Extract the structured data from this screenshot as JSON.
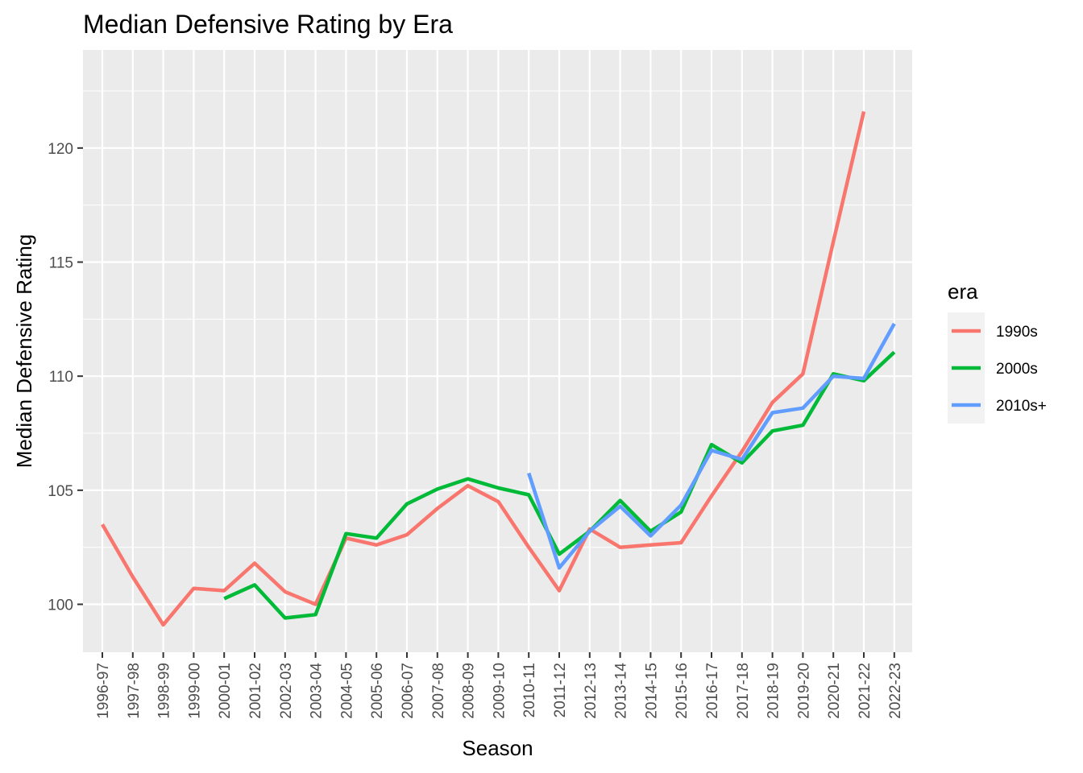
{
  "chart_data": {
    "type": "line",
    "title": "Median Defensive Rating by Era",
    "xlabel": "Season",
    "ylabel": "Median Defensive Rating",
    "categories": [
      "1996-97",
      "1997-98",
      "1998-99",
      "1999-00",
      "2000-01",
      "2001-02",
      "2002-03",
      "2003-04",
      "2004-05",
      "2005-06",
      "2006-07",
      "2007-08",
      "2008-09",
      "2009-10",
      "2010-11",
      "2011-12",
      "2012-13",
      "2013-14",
      "2014-15",
      "2015-16",
      "2016-17",
      "2017-18",
      "2018-19",
      "2019-20",
      "2020-21",
      "2021-22",
      "2022-23"
    ],
    "y_ticks": [
      100,
      105,
      110,
      115,
      120
    ],
    "y_tick_labels": [
      "100",
      "105",
      "110",
      "115",
      "120"
    ],
    "ylim": [
      97.9,
      124.3
    ],
    "grid": true,
    "legend": {
      "title": "era",
      "position": "right"
    },
    "series": [
      {
        "name": "1990s",
        "color": "#F8766D",
        "values": [
          103.5,
          101.2,
          99.1,
          100.7,
          100.6,
          101.8,
          100.55,
          100.0,
          102.9,
          102.6,
          103.05,
          104.2,
          105.2,
          104.5,
          102.5,
          100.6,
          103.3,
          102.5,
          102.6,
          102.7,
          104.75,
          106.7,
          108.85,
          110.1,
          115.9,
          121.6,
          null
        ]
      },
      {
        "name": "2000s",
        "color": "#00BA38",
        "values": [
          null,
          null,
          null,
          null,
          100.25,
          100.85,
          99.4,
          99.55,
          103.1,
          102.9,
          104.4,
          105.05,
          105.5,
          105.1,
          104.8,
          102.2,
          103.2,
          104.55,
          103.2,
          104.05,
          107.0,
          106.2,
          107.6,
          107.85,
          110.1,
          109.8,
          111.05
        ]
      },
      {
        "name": "2010s+",
        "color": "#619CFF",
        "values": [
          null,
          null,
          null,
          null,
          null,
          null,
          null,
          null,
          null,
          null,
          null,
          null,
          null,
          null,
          105.75,
          101.6,
          103.2,
          104.3,
          103.0,
          104.35,
          106.75,
          106.35,
          108.4,
          108.6,
          110.0,
          109.9,
          112.3
        ]
      }
    ]
  }
}
